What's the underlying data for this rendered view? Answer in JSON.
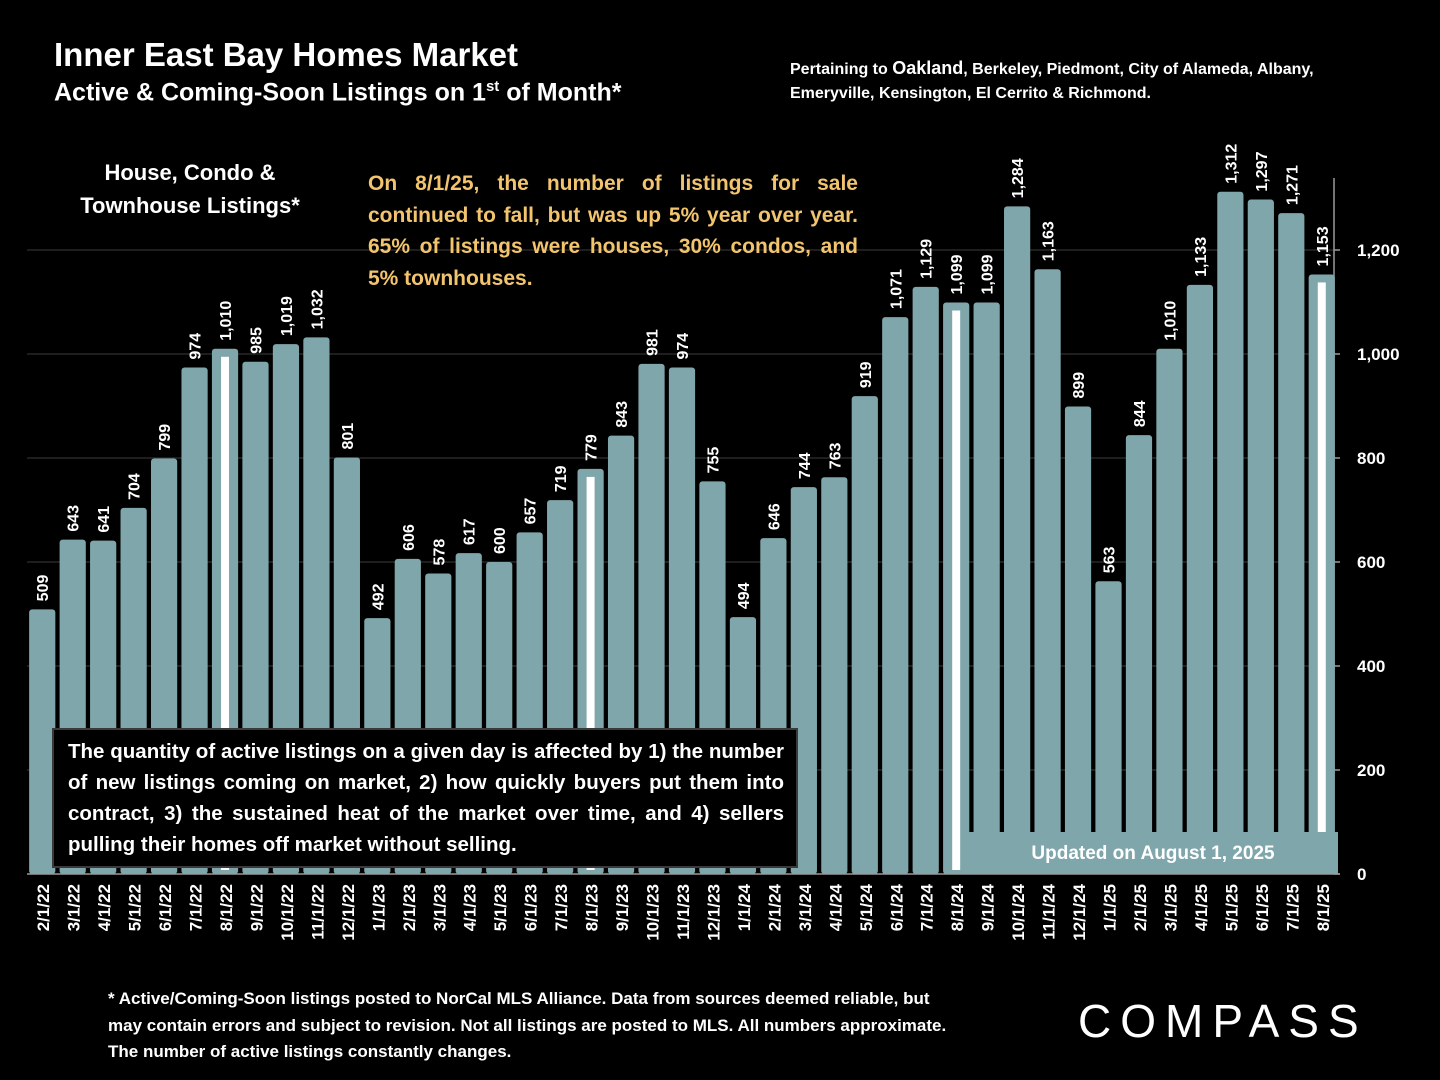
{
  "header": {
    "title": "Inner East Bay Homes Market",
    "subtitle_main": "Active & Coming-Soon Listings on 1",
    "subtitle_sup": "st",
    "subtitle_end": " of Month*",
    "pertaining_prefix": "Pertaining to ",
    "pertaining_city": "Oakland",
    "pertaining_rest": ", Berkeley, Piedmont, City of Alameda, Albany, Emeryville, Kensington, El Cerrito & Richmond."
  },
  "series_label_line1": "House, Condo &",
  "series_label_line2": "Townhouse Listings*",
  "note": "On 8/1/25, the number of listings for sale continued to fall, but was up 5% year over year. 65% of listings were houses, 30% condos, and 5% townhouses.",
  "info_box": "The quantity of active listings on a given day is affected by 1) the number of new listings coming on market, 2) how quickly buyers put them into contract, 3) the sustained heat of the market over time, and 4) sellers pulling their homes off market without selling.",
  "updated": "Updated on August 1, 2025",
  "footnote": "* Active/Coming-Soon listings posted to NorCal MLS Alliance.  Data from sources deemed reliable, but may contain errors and subject to revision.  Not all listings are posted to MLS. All numbers approximate. The number of active listings constantly changes.",
  "logo": "COMPASS",
  "colors": {
    "bar": "#7fa6ab",
    "highlight": "#ffffff",
    "note": "#f2c46d",
    "background": "#000000"
  },
  "chart_data": {
    "type": "bar",
    "categories": [
      "2/1/22",
      "3/1/22",
      "4/1/22",
      "5/1/22",
      "6/1/22",
      "7/1/22",
      "8/1/22",
      "9/1/22",
      "10/1/22",
      "11/1/22",
      "12/1/22",
      "1/1/23",
      "2/1/23",
      "3/1/23",
      "4/1/23",
      "5/1/23",
      "6/1/23",
      "7/1/23",
      "8/1/23",
      "9/1/23",
      "10/1/23",
      "11/1/23",
      "12/1/23",
      "1/1/24",
      "2/1/24",
      "3/1/24",
      "4/1/24",
      "5/1/24",
      "6/1/24",
      "7/1/24",
      "8/1/24",
      "9/1/24",
      "10/1/24",
      "11/1/24",
      "12/1/24",
      "1/1/25",
      "2/1/25",
      "3/1/25",
      "4/1/25",
      "5/1/25",
      "6/1/25",
      "7/1/25",
      "8/1/25"
    ],
    "values": [
      509,
      643,
      641,
      704,
      799,
      974,
      1010,
      985,
      1019,
      1032,
      801,
      492,
      606,
      578,
      617,
      600,
      657,
      719,
      779,
      843,
      981,
      974,
      755,
      494,
      646,
      744,
      763,
      919,
      1071,
      1129,
      1099,
      1099,
      1284,
      1163,
      899,
      563,
      844,
      1010,
      1133,
      1312,
      1297,
      1271,
      1153
    ],
    "value_labels": [
      "509",
      "643",
      "641",
      "704",
      "799",
      "974",
      "1,010",
      "985",
      "1,019",
      "1,032",
      "801",
      "492",
      "606",
      "578",
      "617",
      "600",
      "657",
      "719",
      "779",
      "843",
      "981",
      "974",
      "755",
      "494",
      "646",
      "744",
      "763",
      "919",
      "1,071",
      "1,129",
      "1,099",
      "1,099",
      "1,284",
      "1,163",
      "899",
      "563",
      "844",
      "1,010",
      "1,133",
      "1,312",
      "1,297",
      "1,271",
      "1,153"
    ],
    "highlighted": [
      "8/1/22",
      "8/1/23",
      "8/1/24",
      "8/1/25"
    ],
    "y_ticks": [
      0,
      200,
      400,
      600,
      800,
      1000,
      1200
    ],
    "y_tick_labels": [
      "0",
      "200",
      "400",
      "600",
      "800",
      "1,000",
      "1,200"
    ],
    "ylim": [
      0,
      1320
    ],
    "y_axis_side": "right",
    "grid": "horizontal"
  }
}
